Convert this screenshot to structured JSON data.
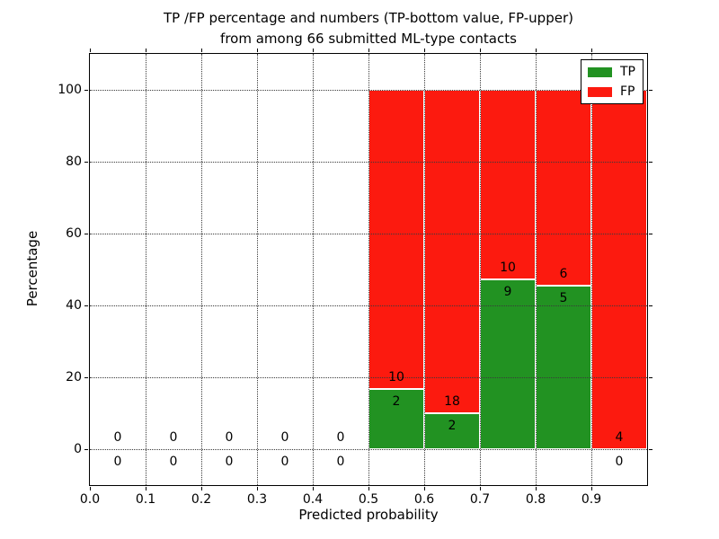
{
  "title": {
    "line1": "TP /FP percentage and numbers (TP-bottom value, FP-upper)",
    "line2": "from among 66 submitted ML-type contacts"
  },
  "axes": {
    "xlabel": "Predicted probability",
    "ylabel": "Percentage",
    "x_tick_labels": [
      "0.0",
      "0.1",
      "0.2",
      "0.3",
      "0.4",
      "0.5",
      "0.6",
      "0.7",
      "0.8",
      "0.9"
    ],
    "y_tick_labels": [
      "0",
      "20",
      "40",
      "60",
      "80",
      "100"
    ]
  },
  "legend": {
    "items": [
      {
        "label": "TP",
        "color": "#229222"
      },
      {
        "label": "FP",
        "color": "#fc1a0f"
      }
    ]
  },
  "chart_data": {
    "type": "bar",
    "stacked": true,
    "normalized_to_percent": true,
    "title": "TP /FP percentage and numbers (TP-bottom value, FP-upper) from among 66 submitted ML-type contacts",
    "xlabel": "Predicted probability",
    "ylabel": "Percentage",
    "total_submitted_contacts": 66,
    "bin_width": 0.1,
    "bin_starts": [
      0.0,
      0.1,
      0.2,
      0.3,
      0.4,
      0.5,
      0.6,
      0.7,
      0.8,
      0.9
    ],
    "series": [
      {
        "name": "TP",
        "color": "#229222",
        "counts": [
          0,
          0,
          0,
          0,
          0,
          2,
          2,
          9,
          5,
          0
        ]
      },
      {
        "name": "FP",
        "color": "#fc1a0f",
        "counts": [
          0,
          0,
          0,
          0,
          0,
          10,
          18,
          10,
          6,
          4
        ]
      }
    ],
    "tp_percent_heights": [
      null,
      null,
      null,
      null,
      null,
      16.7,
      10.0,
      47.4,
      45.5,
      0.0
    ],
    "bar_label_rule": "FP count printed just above the TP/FP boundary, TP count just below it; empty bins show 0 above and below the zero line",
    "xlim": [
      0.0,
      1.0
    ],
    "ylim": [
      -10,
      110
    ],
    "x_ticks": [
      0.0,
      0.1,
      0.2,
      0.3,
      0.4,
      0.5,
      0.6,
      0.7,
      0.8,
      0.9
    ],
    "y_ticks": [
      0,
      20,
      40,
      60,
      80,
      100
    ],
    "grid": "dotted, drawn over bars",
    "legend_position": "upper right"
  }
}
